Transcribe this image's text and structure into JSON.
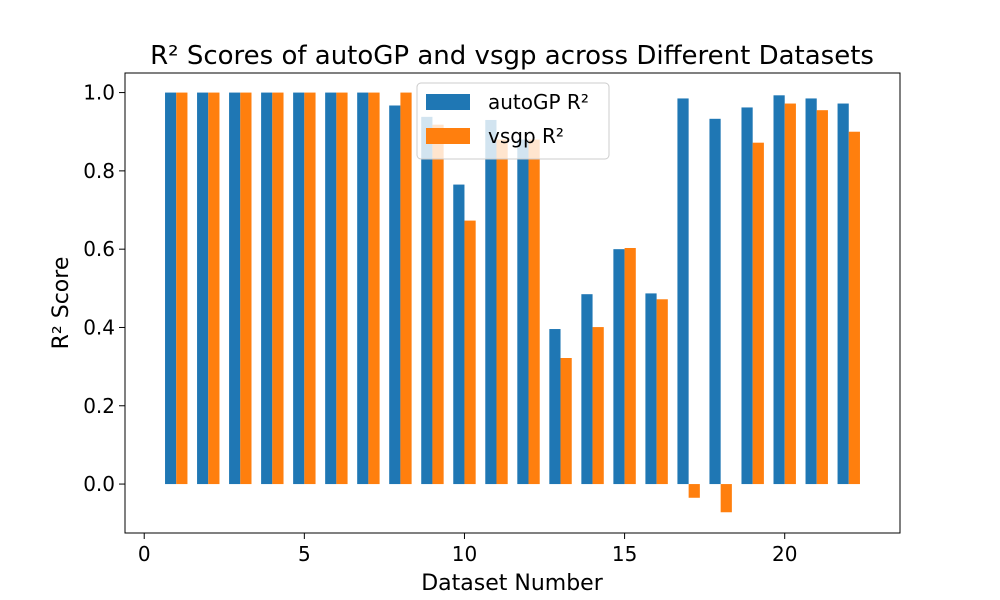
{
  "chart_data": {
    "type": "bar",
    "title": "R² Scores of autoGP and vsgp across Different Datasets",
    "xlabel": "Dataset Number",
    "ylabel": "R² Score",
    "x": [
      1,
      2,
      3,
      4,
      5,
      6,
      7,
      8,
      9,
      10,
      11,
      12,
      13,
      14,
      15,
      16,
      17,
      18,
      19,
      20,
      21,
      22
    ],
    "xlim": [
      -0.6,
      23.6
    ],
    "ylim": [
      -0.125,
      1.05
    ],
    "xticks": [
      0,
      5,
      10,
      15,
      20
    ],
    "yticks": [
      0.0,
      0.2,
      0.4,
      0.6,
      0.8,
      1.0
    ],
    "xtick_labels": [
      "0",
      "5",
      "10",
      "15",
      "20"
    ],
    "ytick_labels": [
      "0.0",
      "0.2",
      "0.4",
      "0.6",
      "0.8",
      "1.0"
    ],
    "grid": false,
    "legend_position": "top-center",
    "series": [
      {
        "name": "autoGP R²",
        "color": "#1f77b4",
        "values": [
          1.0,
          1.0,
          1.0,
          1.0,
          1.0,
          1.0,
          1.0,
          0.967,
          0.938,
          0.765,
          0.93,
          0.88,
          0.396,
          0.485,
          0.6,
          0.487,
          0.985,
          0.933,
          0.962,
          0.993,
          0.985,
          0.972
        ]
      },
      {
        "name": "vsgp R²",
        "color": "#ff7f0e",
        "values": [
          1.0,
          1.0,
          1.0,
          1.0,
          1.0,
          1.0,
          1.0,
          1.0,
          0.918,
          0.673,
          0.88,
          0.88,
          0.322,
          0.401,
          0.603,
          0.472,
          -0.035,
          -0.072,
          0.872,
          0.972,
          0.955,
          0.9
        ]
      }
    ]
  }
}
